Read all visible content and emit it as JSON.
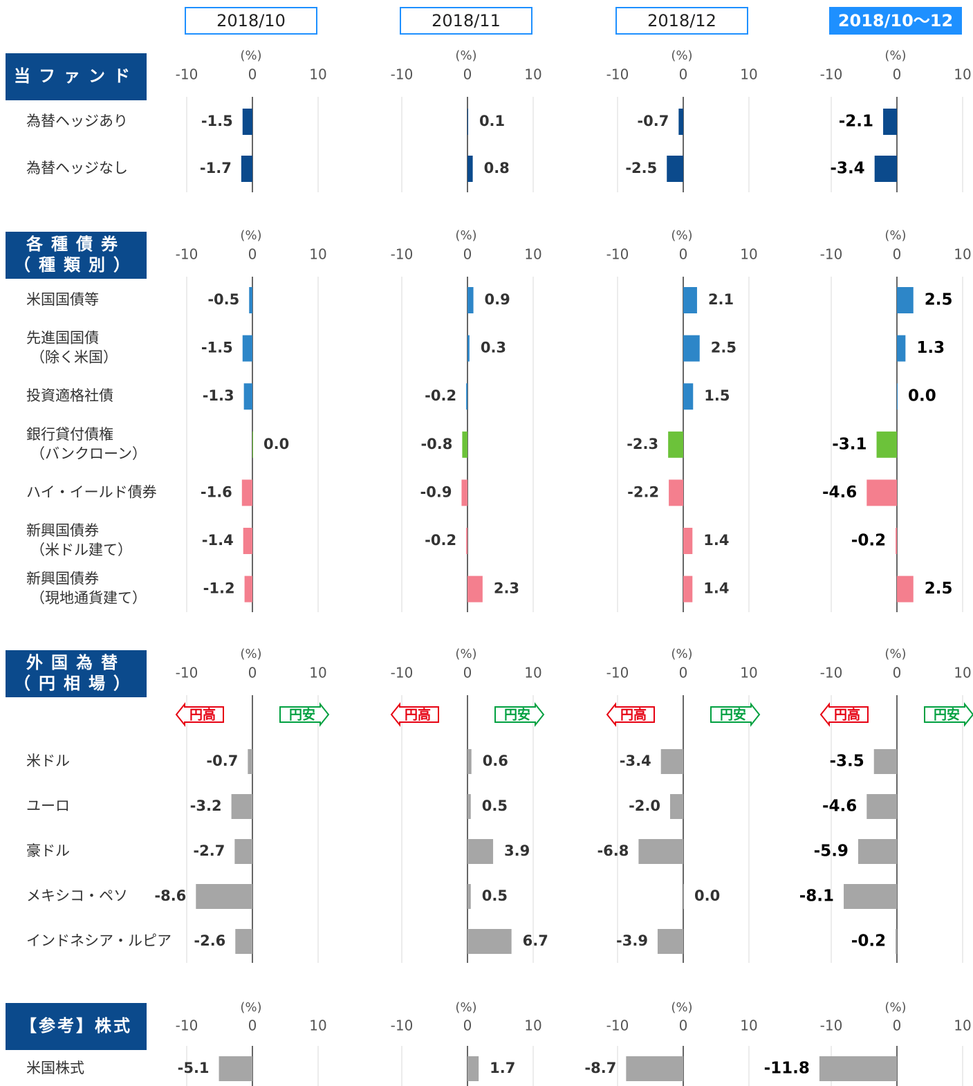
{
  "chart_data": {
    "type": "bar",
    "periods": [
      "2018/10",
      "2018/11",
      "2018/12",
      "2018/10～12"
    ],
    "unit": "(%)",
    "xlim": [
      -10,
      10
    ],
    "xticks": [
      -10,
      0,
      10
    ],
    "arrows": [
      "円高",
      "円安"
    ],
    "sections": [
      {
        "title": [
          "当ファンド"
        ],
        "categories": [
          [
            "為替ヘッジあり"
          ],
          [
            "為替ヘッジなし"
          ]
        ],
        "colors": [
          "#0b4a8c",
          "#0b4a8c"
        ],
        "values": [
          [
            -1.5,
            -1.7
          ],
          [
            0.1,
            0.8
          ],
          [
            -0.7,
            -2.5
          ],
          [
            -2.1,
            -3.4
          ]
        ],
        "value_labels": [
          [
            "-1.5",
            "-1.7"
          ],
          [
            "0.1",
            "0.8"
          ],
          [
            "-0.7",
            "-2.5"
          ],
          [
            "-2.1",
            "-3.4"
          ]
        ]
      },
      {
        "title": [
          "各種債券",
          "（種類別）"
        ],
        "categories": [
          [
            "米国国債等"
          ],
          [
            "先進国国債",
            "（除く米国）"
          ],
          [
            "投資適格社債"
          ],
          [
            "銀行貸付債権",
            "（バンクローン）"
          ],
          [
            "ハイ・イールド債券"
          ],
          [
            "新興国債券",
            "（米ドル建て）"
          ],
          [
            "新興国債券",
            "（現地通貨建て）"
          ]
        ],
        "colors": [
          "#2d86c8",
          "#2d86c8",
          "#2d86c8",
          "#6cc23a",
          "#f47f8e",
          "#f47f8e",
          "#f47f8e"
        ],
        "values": [
          [
            -0.5,
            -1.5,
            -1.3,
            0.0,
            -1.6,
            -1.4,
            -1.2
          ],
          [
            0.9,
            0.3,
            -0.2,
            -0.8,
            -0.9,
            -0.2,
            2.3
          ],
          [
            2.1,
            2.5,
            1.5,
            -2.3,
            -2.2,
            1.4,
            1.4
          ],
          [
            2.5,
            1.3,
            0.0,
            -3.1,
            -4.6,
            -0.2,
            2.5
          ]
        ],
        "value_labels": [
          [
            "-0.5",
            "-1.5",
            "-1.3",
            "0.0",
            "-1.6",
            "-1.4",
            "-1.2"
          ],
          [
            "0.9",
            "0.3",
            "-0.2",
            "-0.8",
            "-0.9",
            "-0.2",
            "2.3"
          ],
          [
            "2.1",
            "2.5",
            "1.5",
            "-2.3",
            "-2.2",
            "1.4",
            "1.4"
          ],
          [
            "2.5",
            "1.3",
            "0.0",
            "-3.1",
            "-4.6",
            "-0.2",
            "2.5"
          ]
        ]
      },
      {
        "title": [
          "外国為替",
          "（円相場）"
        ],
        "categories": [
          [
            "米ドル"
          ],
          [
            "ユーロ"
          ],
          [
            "豪ドル"
          ],
          [
            "メキシコ・ペソ"
          ],
          [
            "インドネシア・ルピア"
          ]
        ],
        "colors": [
          "#a6a6a6",
          "#a6a6a6",
          "#a6a6a6",
          "#a6a6a6",
          "#a6a6a6"
        ],
        "values": [
          [
            -0.7,
            -3.2,
            -2.7,
            -8.6,
            -2.6
          ],
          [
            0.6,
            0.5,
            3.9,
            0.5,
            6.7
          ],
          [
            -3.4,
            -2.0,
            -6.8,
            0.0,
            -3.9
          ],
          [
            -3.5,
            -4.6,
            -5.9,
            -8.1,
            -0.2
          ]
        ],
        "value_labels": [
          [
            "-0.7",
            "-3.2",
            "-2.7",
            "-8.6",
            "-2.6"
          ],
          [
            "0.6",
            "0.5",
            "3.9",
            "0.5",
            "6.7"
          ],
          [
            "-3.4",
            "-2.0",
            "-6.8",
            "0.0",
            "-3.9"
          ],
          [
            "-3.5",
            "-4.6",
            "-5.9",
            "-8.1",
            "-0.2"
          ]
        ]
      },
      {
        "title": [
          "【参考】株式"
        ],
        "categories": [
          [
            "米国株式"
          ]
        ],
        "colors": [
          "#a6a6a6"
        ],
        "values": [
          [
            -5.1
          ],
          [
            1.7
          ],
          [
            -8.7
          ],
          [
            -11.8
          ]
        ],
        "value_labels": [
          [
            "-5.1"
          ],
          [
            "1.7"
          ],
          [
            "-8.7"
          ],
          [
            "-11.8"
          ]
        ]
      }
    ]
  }
}
